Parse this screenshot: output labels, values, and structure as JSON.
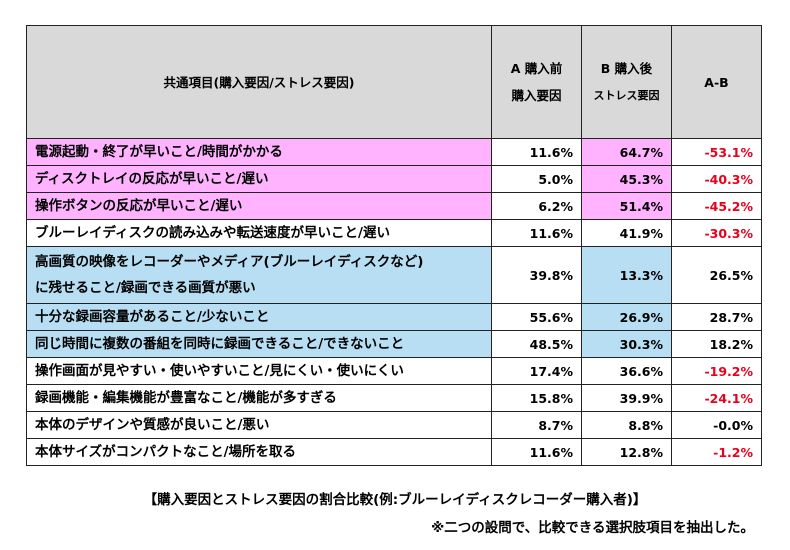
{
  "header": {
    "item": "共通項目(購入要因/ストレス要因)",
    "a_line1": "A 購入前",
    "a_line2": "購入要因",
    "b_line1": "B 購入後",
    "b_line2": "ストレス要因",
    "diff": "A-B"
  },
  "rows": [
    {
      "item": "電源起動・終了が早いこと/時間がかかる",
      "a": "11.6%",
      "b": "64.7%",
      "diff": "-53.1%",
      "highlight": "pink",
      "diff_sign": "neg"
    },
    {
      "item": "ディスクトレイの反応が早いこと/遅い",
      "a": "5.0%",
      "b": "45.3%",
      "diff": "-40.3%",
      "highlight": "pink",
      "diff_sign": "neg"
    },
    {
      "item": "操作ボタンの反応が早いこと/遅い",
      "a": "6.2%",
      "b": "51.4%",
      "diff": "-45.2%",
      "highlight": "pink",
      "diff_sign": "neg"
    },
    {
      "item": "ブルーレイディスクの読み込みや転送速度が早いこと/遅い",
      "a": "11.6%",
      "b": "41.9%",
      "diff": "-30.3%",
      "highlight": "none",
      "diff_sign": "neg"
    },
    {
      "item": "高画質の映像をレコーダーやメディア(ブルーレイディスクなど)",
      "item2": "に残せること/録画できる画質が悪い",
      "a": "39.8%",
      "b": "13.3%",
      "diff": "26.5%",
      "highlight": "blue",
      "diff_sign": "pos"
    },
    {
      "item": "十分な録画容量があること/少ないこと",
      "a": "55.6%",
      "b": "26.9%",
      "diff": "28.7%",
      "highlight": "blue",
      "diff_sign": "pos"
    },
    {
      "item": "同じ時間に複数の番組を同時に録画できること/できないこと",
      "a": "48.5%",
      "b": "30.3%",
      "diff": "18.2%",
      "highlight": "blue",
      "diff_sign": "pos"
    },
    {
      "item": "操作画面が見やすい・使いやすいこと/見にくい・使いにくい",
      "a": "17.4%",
      "b": "36.6%",
      "diff": "-19.2%",
      "highlight": "none",
      "diff_sign": "neg"
    },
    {
      "item": "録画機能・編集機能が豊富なこと/機能が多すぎる",
      "a": "15.8%",
      "b": "39.9%",
      "diff": "-24.1%",
      "highlight": "none",
      "diff_sign": "neg"
    },
    {
      "item": "本体のデザインや質感が良いこと/悪い",
      "a": "8.7%",
      "b": "8.8%",
      "diff": "-0.0%",
      "highlight": "none",
      "diff_sign": "zero"
    },
    {
      "item": "本体サイズがコンパクトなこと/場所を取る",
      "a": "11.6%",
      "b": "12.8%",
      "diff": "-1.2%",
      "highlight": "none",
      "diff_sign": "neg"
    }
  ],
  "caption": "【購入要因とストレス要因の割合比較(例:ブルーレイディスクレコーダー購入者)】",
  "note": "※二つの設問で、比較できる選択肢項目を抽出した。",
  "colors": {
    "pink": "#ffb3ff",
    "blue": "#b7def2",
    "header_bg": "#d9d9d9",
    "negative": "#e8001c"
  }
}
